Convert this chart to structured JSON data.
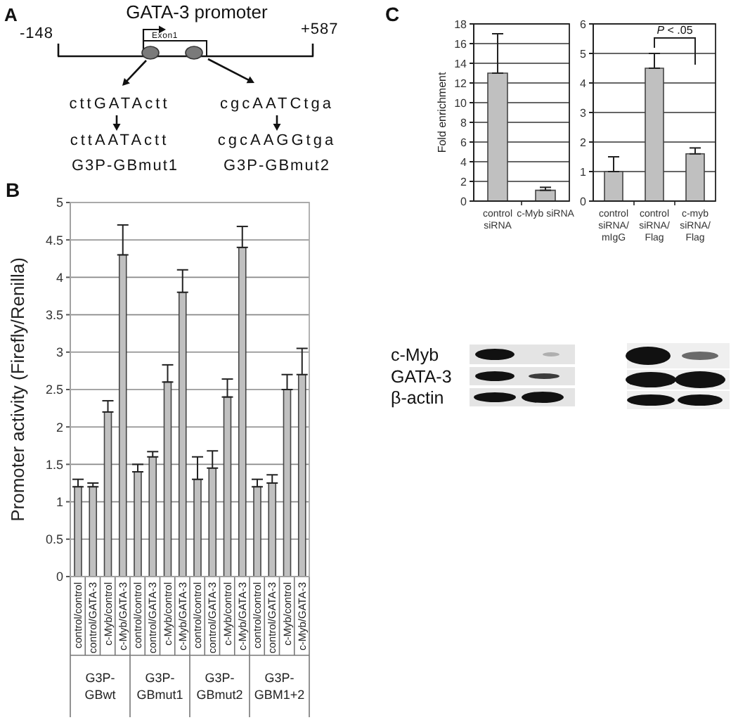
{
  "chart_data": [
    {
      "type": "other",
      "title": "GATA-3 promoter",
      "annotations": [
        "A",
        "-148",
        "+587",
        "Exon1",
        "cttGATActt",
        "cttAATActt",
        "G3P-GBmut1",
        "cgcAATCtga",
        "cgcAAGGtga",
        "G3P-GBmut2"
      ]
    },
    {
      "type": "bar",
      "title": "B",
      "ylabel": "Promoter activity (Firefly/Renilla)",
      "categories": [
        "control/control",
        "control/GATA-3",
        "c-Myb/control",
        "c-Myb/GATA-3",
        "control/control",
        "control/GATA-3",
        "c-Myb/control",
        "c-Myb/GATA-3",
        "control/control",
        "control/GATA-3",
        "c-Myb/control",
        "c-Myb/GATA-3",
        "control/control",
        "control/GATA-3",
        "c-Myb/control",
        "c-Myb/GATA-3"
      ],
      "values": [
        1.2,
        1.2,
        2.2,
        4.3,
        1.4,
        1.6,
        2.6,
        3.8,
        1.3,
        1.45,
        2.4,
        4.4,
        1.2,
        1.25,
        2.5,
        2.7
      ],
      "errors": [
        [
          1.2,
          1.3
        ],
        [
          1.2,
          1.25
        ],
        [
          2.2,
          2.35
        ],
        [
          4.3,
          4.7
        ],
        [
          1.4,
          1.5
        ],
        [
          1.6,
          1.67
        ],
        [
          2.6,
          2.83
        ],
        [
          3.8,
          4.1
        ],
        [
          1.3,
          1.6
        ],
        [
          1.45,
          1.68
        ],
        [
          2.4,
          2.64
        ],
        [
          4.4,
          4.68
        ],
        [
          1.2,
          1.3
        ],
        [
          1.25,
          1.36
        ],
        [
          2.5,
          2.7
        ],
        [
          2.7,
          3.05
        ]
      ],
      "color": "#c0c0c0",
      "ylim": [
        0,
        5
      ],
      "yticks": [
        0,
        0.5,
        1,
        1.5,
        2,
        2.5,
        3,
        3.5,
        4,
        4.5,
        5
      ],
      "grid": "y",
      "annotations": [
        "G3P-GBwt",
        "G3P-GBmut1",
        "G3P-GBmut2",
        "G3P-GBM1+2"
      ]
    },
    {
      "type": "bar",
      "title": "C",
      "ylabel": "Fold enrichment",
      "categories": [
        "control siRNA",
        "c-Myb siRNA"
      ],
      "values": [
        13,
        1.1
      ],
      "errors": [
        [
          13,
          17
        ],
        [
          1.1,
          1.4
        ]
      ],
      "color": "#c0c0c0",
      "ylim": [
        0,
        18
      ],
      "yticks": [
        0,
        2,
        4,
        6,
        8,
        10,
        12,
        14,
        16,
        18
      ],
      "grid": "y",
      "annotations": [
        "c-Myb",
        "GATA-3",
        "β-actin"
      ]
    },
    {
      "type": "bar",
      "categories": [
        "control siRNA/ mIgG",
        "control siRNA/ Flag",
        "c-myb siRNA/ Flag"
      ],
      "values": [
        1,
        4.5,
        1.6
      ],
      "errors": [
        [
          1,
          1.5
        ],
        [
          4.5,
          5
        ],
        [
          1.6,
          1.8
        ]
      ],
      "color": "#c0c0c0",
      "ylim": [
        0,
        6
      ],
      "yticks": [
        0,
        1,
        2,
        3,
        4,
        5,
        6
      ],
      "grid": "y",
      "annotations": [
        "P < .05"
      ]
    }
  ]
}
